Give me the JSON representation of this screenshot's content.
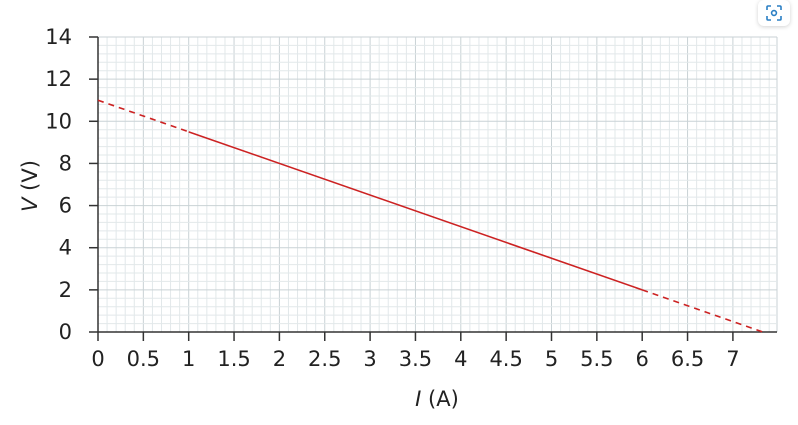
{
  "chart_data": {
    "type": "line",
    "xlabel": {
      "italic": "I",
      "rest": " (A)"
    },
    "ylabel": {
      "italic": "V",
      "rest": " (V)"
    },
    "xlim": [
      0,
      7.5
    ],
    "ylim": [
      0,
      14
    ],
    "xticks": [
      0,
      0.5,
      1,
      1.5,
      2,
      2.5,
      3,
      3.5,
      4,
      4.5,
      5,
      5.5,
      6,
      6.5,
      7
    ],
    "yticks": [
      0,
      2,
      4,
      6,
      8,
      10,
      12,
      14
    ],
    "xtick_labels": [
      "0",
      "0.5",
      "1",
      "1.5",
      "2",
      "2.5",
      "3",
      "3.5",
      "4",
      "4.5",
      "5",
      "5.5",
      "6",
      "6.5",
      "7"
    ],
    "ytick_labels": [
      "0",
      "2",
      "4",
      "6",
      "8",
      "10",
      "12",
      "14"
    ],
    "grid": true,
    "series": [
      {
        "style": "dashed",
        "color": "#cc2222",
        "x": [
          0,
          1
        ],
        "y": [
          11,
          9.5
        ]
      },
      {
        "style": "solid",
        "color": "#cc2222",
        "x": [
          1,
          6
        ],
        "y": [
          9.5,
          2
        ]
      },
      {
        "style": "dashed",
        "color": "#cc2222",
        "x": [
          6,
          7.33
        ],
        "y": [
          2,
          0
        ]
      }
    ]
  },
  "toolbar": {
    "scan_icon": "scan-icon"
  }
}
